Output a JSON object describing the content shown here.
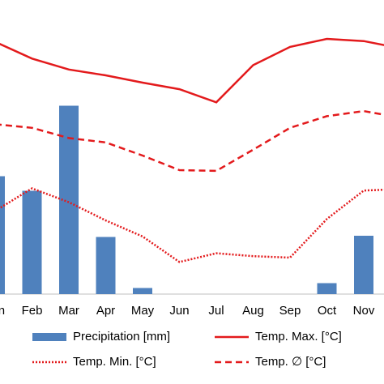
{
  "chart_data": {
    "type": "combo",
    "categories": [
      "Jan",
      "Feb",
      "Mar",
      "Apr",
      "May",
      "Jun",
      "Jul",
      "Aug",
      "Sep",
      "Oct",
      "Nov",
      null
    ],
    "ylim": [
      0,
      40
    ],
    "y2lim": [
      0,
      240
    ],
    "legend": "bottom",
    "series": [
      {
        "name": "Precipitation [mm]",
        "type": "bar",
        "axis": "y2",
        "color": "#4f81bd",
        "values": [
          97,
          85,
          155,
          47,
          5,
          0,
          0,
          0,
          0,
          9,
          48,
          null
        ]
      },
      {
        "name": "Temp. Max. [°C]",
        "type": "line",
        "style": "solid",
        "color": "#e31a1c",
        "values": [
          34.6,
          32.3,
          30.8,
          30,
          29,
          28.1,
          26.3,
          31.4,
          33.9,
          35,
          34.7,
          33.7
        ]
      },
      {
        "name": "Temp. Min. [°C]",
        "type": "line",
        "style": "dotted",
        "color": "#e31a1c",
        "values": [
          11.4,
          14.5,
          12.6,
          10.1,
          7.9,
          4.4,
          5.6,
          5.2,
          5,
          10.3,
          14.2,
          14.4
        ]
      },
      {
        "name": "Temp. ∅ [°C]",
        "type": "line",
        "style": "dashed",
        "color": "#e31a1c",
        "values": [
          23.3,
          22.8,
          21.4,
          20.8,
          19,
          17,
          16.9,
          19.8,
          22.8,
          24.4,
          25.1,
          24.2
        ]
      }
    ]
  }
}
